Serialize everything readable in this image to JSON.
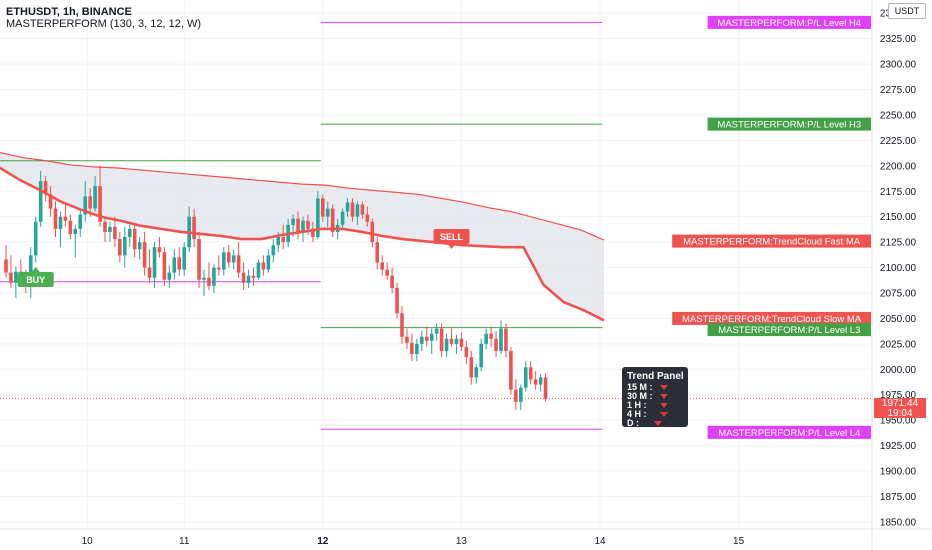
{
  "header": {
    "symbol_line": "ETHUSDT, 1h, BINANCE",
    "indicator_line": "MASTERPERFORM (130, 3, 12, 12, W)"
  },
  "currency_button": "USDT",
  "colors": {
    "bull": "#26a69a",
    "bear": "#ef5350",
    "cloud_fill": "#e0e3eb",
    "level_green": "#43a047",
    "level_magenta": "#e040fb",
    "ma_red": "#ef5350"
  },
  "price_axis": {
    "ticks": [
      "2350.00",
      "2325.00",
      "2300.00",
      "2275.00",
      "2250.00",
      "2225.00",
      "2200.00",
      "2175.00",
      "2150.00",
      "2125.00",
      "2100.00",
      "2075.00",
      "2050.00",
      "2025.00",
      "2000.00",
      "1975.00",
      "1950.00",
      "1925.00",
      "1900.00",
      "1875.00",
      "1850.00"
    ],
    "current_price": "1971.44",
    "countdown": "19:04"
  },
  "time_axis": {
    "ticks": [
      "10",
      "11",
      "12",
      "13",
      "14",
      "15"
    ]
  },
  "labels": {
    "level_h4": "MASTERPERFORM:P/L Level H4",
    "level_h3": "MASTERPERFORM:P/L Level H3",
    "fast_ma": "MASTERPERFORM:TrendCloud Fast MA",
    "slow_ma": "MASTERPERFORM:TrendCloud Slow MA",
    "level_l3": "MASTERPERFORM:P/L Level L3",
    "level_l4": "MASTERPERFORM:P/L Level L4",
    "buy": "BUY",
    "sell": "SELL"
  },
  "trend_panel": {
    "title": "Trend Panel",
    "rows": [
      {
        "tf": "15 M :",
        "icon": "down-arrow-icon"
      },
      {
        "tf": "30 M :",
        "icon": "down-arrow-icon"
      },
      {
        "tf": "1 H :",
        "icon": "down-arrow-icon"
      },
      {
        "tf": "4 H :",
        "icon": "down-arrow-icon"
      },
      {
        "tf": "D :",
        "icon": "down-arrow-icon"
      }
    ]
  },
  "chart_data": {
    "type": "candlestick",
    "symbol": "ETHUSDT",
    "interval": "1h",
    "exchange": "BINANCE",
    "ylim": [
      1843,
      2363
    ],
    "x_range": [
      "Oct 9 14:00",
      "Oct 15 16:00"
    ],
    "candles": [
      [
        2108,
        2122,
        2090,
        2095
      ],
      [
        2095,
        2112,
        2080,
        2085
      ],
      [
        2085,
        2101,
        2070,
        2096
      ],
      [
        2096,
        2108,
        2082,
        2090
      ],
      [
        2090,
        2098,
        2075,
        2082
      ],
      [
        2082,
        2120,
        2070,
        2112
      ],
      [
        2112,
        2150,
        2105,
        2145
      ],
      [
        2145,
        2195,
        2140,
        2185
      ],
      [
        2185,
        2190,
        2165,
        2172
      ],
      [
        2172,
        2180,
        2150,
        2158
      ],
      [
        2158,
        2165,
        2130,
        2138
      ],
      [
        2138,
        2155,
        2120,
        2150
      ],
      [
        2150,
        2162,
        2140,
        2146
      ],
      [
        2146,
        2152,
        2128,
        2133
      ],
      [
        2133,
        2142,
        2110,
        2138
      ],
      [
        2138,
        2158,
        2130,
        2152
      ],
      [
        2152,
        2185,
        2145,
        2170
      ],
      [
        2170,
        2178,
        2150,
        2158
      ],
      [
        2158,
        2190,
        2155,
        2180
      ],
      [
        2180,
        2200,
        2140,
        2145
      ],
      [
        2145,
        2150,
        2125,
        2135
      ],
      [
        2135,
        2145,
        2125,
        2140
      ],
      [
        2140,
        2150,
        2120,
        2128
      ],
      [
        2128,
        2135,
        2105,
        2112
      ],
      [
        2112,
        2140,
        2100,
        2130
      ],
      [
        2130,
        2145,
        2120,
        2138
      ],
      [
        2138,
        2142,
        2110,
        2118
      ],
      [
        2118,
        2130,
        2108,
        2125
      ],
      [
        2125,
        2135,
        2092,
        2100
      ],
      [
        2100,
        2118,
        2085,
        2090
      ],
      [
        2090,
        2125,
        2080,
        2120
      ],
      [
        2120,
        2130,
        2110,
        2115
      ],
      [
        2115,
        2120,
        2082,
        2088
      ],
      [
        2088,
        2102,
        2080,
        2095
      ],
      [
        2095,
        2118,
        2088,
        2110
      ],
      [
        2110,
        2120,
        2092,
        2098
      ],
      [
        2098,
        2125,
        2092,
        2120
      ],
      [
        2120,
        2160,
        2115,
        2150
      ],
      [
        2150,
        2158,
        2120,
        2128
      ],
      [
        2128,
        2135,
        2080,
        2088
      ],
      [
        2088,
        2098,
        2072,
        2090
      ],
      [
        2090,
        2105,
        2078,
        2082
      ],
      [
        2082,
        2103,
        2075,
        2100
      ],
      [
        2100,
        2112,
        2092,
        2098
      ],
      [
        2098,
        2120,
        2092,
        2115
      ],
      [
        2115,
        2122,
        2100,
        2105
      ],
      [
        2105,
        2118,
        2098,
        2112
      ],
      [
        2112,
        2125,
        2090,
        2095
      ],
      [
        2095,
        2105,
        2078,
        2085
      ],
      [
        2085,
        2098,
        2080,
        2092
      ],
      [
        2092,
        2100,
        2082,
        2090
      ],
      [
        2090,
        2108,
        2088,
        2105
      ],
      [
        2105,
        2112,
        2092,
        2098
      ],
      [
        2098,
        2118,
        2095,
        2112
      ],
      [
        2112,
        2128,
        2105,
        2122
      ],
      [
        2122,
        2135,
        2115,
        2130
      ],
      [
        2130,
        2142,
        2118,
        2125
      ],
      [
        2125,
        2148,
        2120,
        2142
      ],
      [
        2142,
        2152,
        2130,
        2148
      ],
      [
        2148,
        2155,
        2128,
        2135
      ],
      [
        2135,
        2150,
        2125,
        2146
      ],
      [
        2146,
        2152,
        2132,
        2138
      ],
      [
        2138,
        2145,
        2125,
        2130
      ],
      [
        2130,
        2175,
        2128,
        2168
      ],
      [
        2168,
        2172,
        2145,
        2150
      ],
      [
        2150,
        2165,
        2140,
        2158
      ],
      [
        2158,
        2162,
        2130,
        2135
      ],
      [
        2135,
        2148,
        2128,
        2142
      ],
      [
        2142,
        2158,
        2138,
        2155
      ],
      [
        2155,
        2168,
        2150,
        2164
      ],
      [
        2164,
        2168,
        2145,
        2150
      ],
      [
        2150,
        2165,
        2142,
        2162
      ],
      [
        2162,
        2165,
        2148,
        2152
      ],
      [
        2152,
        2160,
        2140,
        2145
      ],
      [
        2145,
        2148,
        2120,
        2125
      ],
      [
        2125,
        2130,
        2098,
        2105
      ],
      [
        2105,
        2112,
        2092,
        2098
      ],
      [
        2098,
        2105,
        2088,
        2092
      ],
      [
        2092,
        2100,
        2075,
        2080
      ],
      [
        2080,
        2085,
        2050,
        2055
      ],
      [
        2055,
        2062,
        2025,
        2032
      ],
      [
        2032,
        2040,
        2020,
        2026
      ],
      [
        2026,
        2035,
        2008,
        2015
      ],
      [
        2015,
        2030,
        2008,
        2025
      ],
      [
        2025,
        2038,
        2018,
        2032
      ],
      [
        2032,
        2042,
        2022,
        2028
      ],
      [
        2028,
        2040,
        2015,
        2035
      ],
      [
        2035,
        2045,
        2028,
        2040
      ],
      [
        2040,
        2045,
        2012,
        2018
      ],
      [
        2018,
        2035,
        2012,
        2030
      ],
      [
        2030,
        2040,
        2022,
        2025
      ],
      [
        2025,
        2034,
        2015,
        2030
      ],
      [
        2030,
        2036,
        2018,
        2022
      ],
      [
        2022,
        2028,
        2005,
        2012
      ],
      [
        2012,
        2018,
        1985,
        1992
      ],
      [
        1992,
        2005,
        1986,
        2002
      ],
      [
        2002,
        2030,
        1998,
        2025
      ],
      [
        2025,
        2040,
        2020,
        2035
      ],
      [
        2035,
        2042,
        2022,
        2030
      ],
      [
        2030,
        2038,
        2012,
        2018
      ],
      [
        2018,
        2048,
        2015,
        2040
      ],
      [
        2040,
        2045,
        2012,
        2018
      ],
      [
        2018,
        2022,
        1975,
        1980
      ],
      [
        1980,
        1990,
        1960,
        1968
      ],
      [
        1968,
        1985,
        1960,
        1982
      ],
      [
        1982,
        2008,
        1978,
        2002
      ],
      [
        2002,
        2008,
        1985,
        1990
      ],
      [
        1990,
        1998,
        1980,
        1985
      ],
      [
        1985,
        1995,
        1978,
        1992
      ],
      [
        1992,
        1996,
        1968,
        1971
      ]
    ],
    "fast_ma": [
      2198,
      2186,
      2176,
      2165,
      2157,
      2150,
      2146,
      2141,
      2138,
      2135,
      2133,
      2131,
      2128,
      2128,
      2132,
      2135,
      2138,
      2138,
      2135,
      2131,
      2128,
      2126,
      2124,
      2122,
      2121,
      2120,
      2120,
      2083,
      2066,
      2058,
      2048
    ],
    "slow_ma": [
      2213,
      2208,
      2205,
      2201,
      2199,
      2198,
      2196,
      2194,
      2192,
      2190,
      2188,
      2186,
      2184,
      2182,
      2181,
      2178,
      2176,
      2174,
      2172,
      2168,
      2164,
      2159,
      2155,
      2149,
      2143,
      2137,
      2127
    ],
    "levels": [
      {
        "name": "P/L Level H4",
        "value": 2341,
        "color": "#e040fb",
        "from": "Oct 12 00:00",
        "to": "Oct 13 21:00"
      },
      {
        "name": "P/L Level H3",
        "value": 2241,
        "color": "#43a047",
        "from": "Oct 12 00:00",
        "to": "Oct 13 21:00"
      },
      {
        "name": "P/L Level L3",
        "value": 2041,
        "color": "#43a047",
        "from": "Oct 12 00:00",
        "to": "Oct 13 21:00"
      },
      {
        "name": "P/L Level L4",
        "value": 1941,
        "color": "#e040fb",
        "from": "Oct 12 00:00",
        "to": "Oct 13 21:00"
      },
      {
        "name": "prior H",
        "value": 2205,
        "color": "#43a047",
        "from": "Oct 9 14:00",
        "to": "Oct 12 00:00"
      },
      {
        "name": "prior L",
        "value": 2086,
        "color": "#e040fb",
        "from": "Oct 9 14:00",
        "to": "Oct 12 00:00"
      }
    ],
    "signals": [
      {
        "label": "BUY",
        "price": 2095
      },
      {
        "label": "SELL",
        "price": 2138
      }
    ],
    "current_price": 1971.44
  }
}
